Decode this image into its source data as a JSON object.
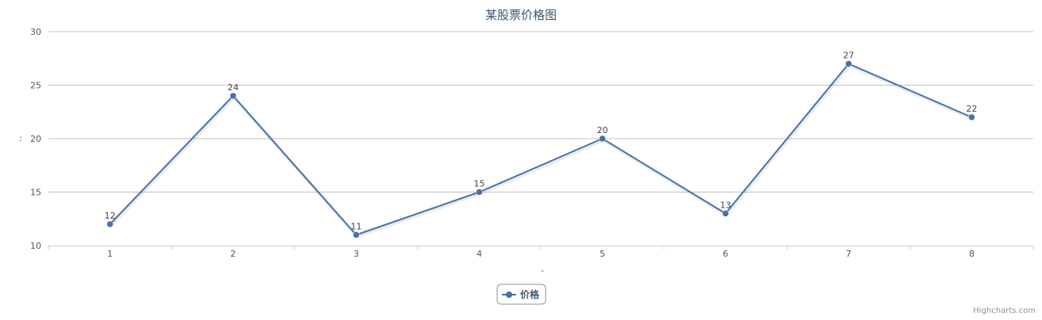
{
  "chart_data": {
    "type": "line",
    "title": "某股票价格图",
    "xlabel": "-",
    "ylabel": ":",
    "categories": [
      "1",
      "2",
      "3",
      "4",
      "5",
      "6",
      "7",
      "8"
    ],
    "y_ticks": [
      "10",
      "15",
      "20",
      "25",
      "30"
    ],
    "ylim": [
      10,
      30
    ],
    "grid": true,
    "legend_position": "bottom-center",
    "series": [
      {
        "name": "价格",
        "values": [
          12,
          24,
          11,
          15,
          20,
          13,
          27,
          22
        ],
        "color": "#4572A7"
      }
    ],
    "data_labels": [
      "12",
      "24",
      "11",
      "15",
      "20",
      "13",
      "27",
      "22"
    ]
  },
  "credits": "Highcharts.com",
  "colors": {
    "series": "#4572A7",
    "title": "#3E576F",
    "grid": "#C0C0C0",
    "axis": "#C0D0E0"
  }
}
